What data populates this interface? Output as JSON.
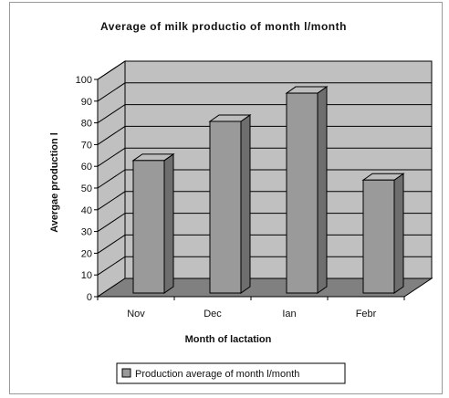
{
  "chart_data": {
    "type": "bar",
    "title": "Average of milk productio of month l/month",
    "xlabel": "Month of lactation",
    "ylabel": "Avergae production l",
    "categories": [
      "Nov",
      "Dec",
      "Ian",
      "Febr"
    ],
    "series": [
      {
        "name": "Production average of month l/month",
        "values": [
          61,
          79,
          92,
          52
        ]
      }
    ],
    "ylim": [
      0,
      100
    ],
    "yticks": [
      0,
      10,
      20,
      30,
      40,
      50,
      60,
      70,
      80,
      90,
      100
    ],
    "grid": true,
    "legend_position": "bottom",
    "colors": {
      "wall": "#c0c0c0",
      "floor": "#808080",
      "bar_front": "#9a9a9a",
      "bar_top": "#bdbdbd",
      "bar_side": "#6e6e6e"
    }
  }
}
